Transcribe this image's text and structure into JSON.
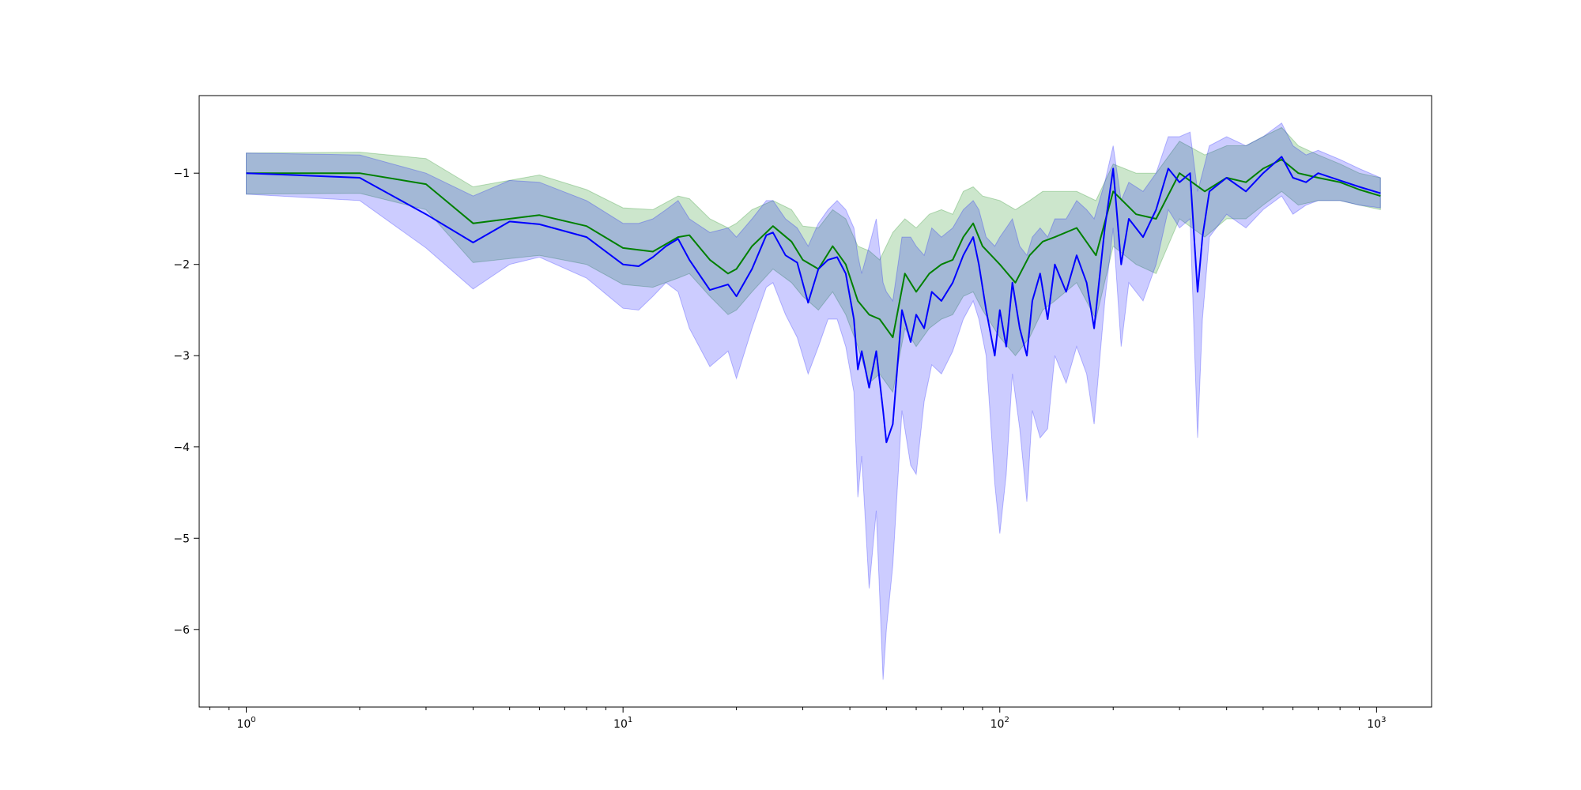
{
  "chart_data": {
    "type": "line",
    "title": "",
    "xlabel": "",
    "ylabel": "",
    "xscale": "log",
    "xlim": [
      0.75,
      1400
    ],
    "ylim": [
      -6.85,
      -0.15
    ],
    "grid": false,
    "legend": "none",
    "x_ticks": [
      {
        "base": "10",
        "exp": "0",
        "value": 1
      },
      {
        "base": "10",
        "exp": "1",
        "value": 10
      },
      {
        "base": "10",
        "exp": "2",
        "value": 100
      },
      {
        "base": "10",
        "exp": "3",
        "value": 1000
      }
    ],
    "y_ticks": [
      {
        "label": "−1",
        "value": -1
      },
      {
        "label": "−2",
        "value": -2
      },
      {
        "label": "−3",
        "value": -3
      },
      {
        "label": "−4",
        "value": -4
      },
      {
        "label": "−5",
        "value": -5
      },
      {
        "label": "−6",
        "value": -6
      }
    ],
    "series": [
      {
        "color": "#008000",
        "band_color": "#008000",
        "points": [
          [
            1,
            -1.0,
            -1.23,
            -0.78
          ],
          [
            2,
            -1.0,
            -1.22,
            -0.77
          ],
          [
            3,
            -1.12,
            -1.4,
            -0.84
          ],
          [
            4,
            -1.55,
            -1.98,
            -1.15
          ],
          [
            6,
            -1.46,
            -1.9,
            -1.02
          ],
          [
            8,
            -1.58,
            -2.0,
            -1.18
          ],
          [
            10,
            -1.82,
            -2.22,
            -1.38
          ],
          [
            12,
            -1.86,
            -2.25,
            -1.4
          ],
          [
            14,
            -1.7,
            -2.15,
            -1.25
          ],
          [
            15,
            -1.68,
            -2.1,
            -1.28
          ],
          [
            17,
            -1.95,
            -2.35,
            -1.5
          ],
          [
            19,
            -2.1,
            -2.55,
            -1.6
          ],
          [
            20,
            -2.05,
            -2.5,
            -1.55
          ],
          [
            22,
            -1.8,
            -2.3,
            -1.4
          ],
          [
            25,
            -1.58,
            -2.05,
            -1.3
          ],
          [
            28,
            -1.75,
            -2.2,
            -1.4
          ],
          [
            30,
            -1.95,
            -2.35,
            -1.58
          ],
          [
            33,
            -2.05,
            -2.5,
            -1.6
          ],
          [
            36,
            -1.8,
            -2.3,
            -1.4
          ],
          [
            39,
            -2.0,
            -2.55,
            -1.5
          ],
          [
            42,
            -2.4,
            -2.9,
            -1.8
          ],
          [
            45,
            -2.55,
            -3.3,
            -1.85
          ],
          [
            48,
            -2.6,
            -3.2,
            -1.95
          ],
          [
            52,
            -2.8,
            -3.4,
            -1.65
          ],
          [
            56,
            -2.1,
            -2.7,
            -1.5
          ],
          [
            60,
            -2.3,
            -2.9,
            -1.6
          ],
          [
            65,
            -2.1,
            -2.7,
            -1.45
          ],
          [
            70,
            -2.0,
            -2.6,
            -1.4
          ],
          [
            75,
            -1.95,
            -2.55,
            -1.45
          ],
          [
            80,
            -1.7,
            -2.35,
            -1.2
          ],
          [
            85,
            -1.55,
            -2.3,
            -1.15
          ],
          [
            90,
            -1.8,
            -2.5,
            -1.25
          ],
          [
            100,
            -2.0,
            -2.8,
            -1.3
          ],
          [
            110,
            -2.2,
            -3.0,
            -1.4
          ],
          [
            120,
            -1.9,
            -2.8,
            -1.3
          ],
          [
            130,
            -1.75,
            -2.5,
            -1.2
          ],
          [
            140,
            -1.7,
            -2.4,
            -1.2
          ],
          [
            160,
            -1.6,
            -2.2,
            -1.2
          ],
          [
            180,
            -1.9,
            -2.6,
            -1.3
          ],
          [
            200,
            -1.2,
            -1.8,
            -0.9
          ],
          [
            230,
            -1.45,
            -2.0,
            -1.0
          ],
          [
            260,
            -1.5,
            -2.1,
            -1.0
          ],
          [
            300,
            -1.0,
            -1.5,
            -0.65
          ],
          [
            350,
            -1.2,
            -1.7,
            -0.8
          ],
          [
            400,
            -1.05,
            -1.5,
            -0.7
          ],
          [
            450,
            -1.1,
            -1.5,
            -0.7
          ],
          [
            500,
            -0.95,
            -1.35,
            -0.6
          ],
          [
            560,
            -0.85,
            -1.2,
            -0.5
          ],
          [
            620,
            -1.0,
            -1.35,
            -0.7
          ],
          [
            700,
            -1.05,
            -1.3,
            -0.8
          ],
          [
            800,
            -1.1,
            -1.3,
            -0.9
          ],
          [
            900,
            -1.18,
            -1.35,
            -1.0
          ],
          [
            1024,
            -1.25,
            -1.4,
            -1.05
          ]
        ]
      },
      {
        "color": "#0000ff",
        "band_color": "#0000ff",
        "points": [
          [
            1,
            -1.0,
            -1.23,
            -0.78
          ],
          [
            2,
            -1.05,
            -1.3,
            -0.8
          ],
          [
            3,
            -1.45,
            -1.82,
            -1.0
          ],
          [
            4,
            -1.76,
            -2.27,
            -1.25
          ],
          [
            5,
            -1.53,
            -2.0,
            -1.08
          ],
          [
            6,
            -1.56,
            -1.92,
            -1.1
          ],
          [
            8,
            -1.7,
            -2.15,
            -1.3
          ],
          [
            10,
            -2.0,
            -2.48,
            -1.55
          ],
          [
            11,
            -2.02,
            -2.5,
            -1.55
          ],
          [
            12,
            -1.92,
            -2.35,
            -1.5
          ],
          [
            13,
            -1.8,
            -2.2,
            -1.4
          ],
          [
            14,
            -1.72,
            -2.3,
            -1.3
          ],
          [
            15,
            -1.95,
            -2.7,
            -1.5
          ],
          [
            17,
            -2.28,
            -3.12,
            -1.65
          ],
          [
            19,
            -2.22,
            -2.95,
            -1.6
          ],
          [
            20,
            -2.35,
            -3.25,
            -1.7
          ],
          [
            22,
            -2.05,
            -2.7,
            -1.5
          ],
          [
            24,
            -1.68,
            -2.25,
            -1.3
          ],
          [
            25,
            -1.65,
            -2.2,
            -1.3
          ],
          [
            27,
            -1.9,
            -2.55,
            -1.5
          ],
          [
            29,
            -1.98,
            -2.8,
            -1.6
          ],
          [
            31,
            -2.42,
            -3.2,
            -1.8
          ],
          [
            33,
            -2.05,
            -2.9,
            -1.55
          ],
          [
            35,
            -1.95,
            -2.6,
            -1.4
          ],
          [
            37,
            -1.92,
            -2.6,
            -1.3
          ],
          [
            39,
            -2.1,
            -2.9,
            -1.4
          ],
          [
            41,
            -2.6,
            -3.4,
            -1.6
          ],
          [
            42,
            -3.15,
            -4.55,
            -1.9
          ],
          [
            43,
            -2.95,
            -4.1,
            -2.1
          ],
          [
            45,
            -3.35,
            -5.55,
            -1.8
          ],
          [
            47,
            -2.95,
            -4.7,
            -1.5
          ],
          [
            49,
            -3.6,
            -6.55,
            -2.2
          ],
          [
            50,
            -3.95,
            -6.0,
            -2.3
          ],
          [
            52,
            -3.75,
            -5.3,
            -2.4
          ],
          [
            55,
            -2.5,
            -3.6,
            -1.7
          ],
          [
            58,
            -2.85,
            -4.2,
            -1.7
          ],
          [
            60,
            -2.55,
            -4.3,
            -1.8
          ],
          [
            63,
            -2.7,
            -3.5,
            -1.9
          ],
          [
            66,
            -2.3,
            -3.1,
            -1.6
          ],
          [
            70,
            -2.4,
            -3.2,
            -1.7
          ],
          [
            75,
            -2.2,
            -2.95,
            -1.6
          ],
          [
            80,
            -1.9,
            -2.6,
            -1.4
          ],
          [
            85,
            -1.7,
            -2.4,
            -1.3
          ],
          [
            88,
            -2.0,
            -2.6,
            -1.4
          ],
          [
            92,
            -2.5,
            -3.0,
            -1.7
          ],
          [
            97,
            -3.0,
            -4.4,
            -1.8
          ],
          [
            100,
            -2.5,
            -4.95,
            -1.7
          ],
          [
            104,
            -2.9,
            -4.3,
            -1.6
          ],
          [
            108,
            -2.2,
            -3.2,
            -1.5
          ],
          [
            113,
            -2.7,
            -3.8,
            -1.8
          ],
          [
            118,
            -3.0,
            -4.6,
            -1.9
          ],
          [
            122,
            -2.4,
            -3.6,
            -1.7
          ],
          [
            128,
            -2.1,
            -3.9,
            -1.6
          ],
          [
            134,
            -2.6,
            -3.8,
            -1.7
          ],
          [
            140,
            -2.0,
            -3.0,
            -1.5
          ],
          [
            150,
            -2.3,
            -3.3,
            -1.5
          ],
          [
            160,
            -1.9,
            -2.9,
            -1.3
          ],
          [
            170,
            -2.2,
            -3.2,
            -1.4
          ],
          [
            178,
            -2.7,
            -3.75,
            -1.5
          ],
          [
            190,
            -1.6,
            -2.4,
            -1.1
          ],
          [
            200,
            -0.95,
            -1.6,
            -0.7
          ],
          [
            210,
            -2.0,
            -2.9,
            -1.3
          ],
          [
            220,
            -1.5,
            -2.2,
            -1.1
          ],
          [
            240,
            -1.7,
            -2.4,
            -1.2
          ],
          [
            260,
            -1.4,
            -2.0,
            -1.0
          ],
          [
            280,
            -0.95,
            -1.4,
            -0.6
          ],
          [
            300,
            -1.1,
            -1.6,
            -0.6
          ],
          [
            320,
            -1.0,
            -1.5,
            -0.55
          ],
          [
            335,
            -2.3,
            -3.9,
            -1.2
          ],
          [
            345,
            -1.7,
            -2.6,
            -1.0
          ],
          [
            360,
            -1.2,
            -1.7,
            -0.7
          ],
          [
            400,
            -1.05,
            -1.45,
            -0.6
          ],
          [
            450,
            -1.2,
            -1.6,
            -0.7
          ],
          [
            500,
            -1.0,
            -1.4,
            -0.6
          ],
          [
            560,
            -0.82,
            -1.25,
            -0.45
          ],
          [
            600,
            -1.05,
            -1.45,
            -0.7
          ],
          [
            650,
            -1.1,
            -1.35,
            -0.8
          ],
          [
            700,
            -1.0,
            -1.3,
            -0.75
          ],
          [
            800,
            -1.08,
            -1.3,
            -0.85
          ],
          [
            900,
            -1.15,
            -1.35,
            -0.95
          ],
          [
            1024,
            -1.22,
            -1.38,
            -1.05
          ]
        ]
      }
    ]
  }
}
